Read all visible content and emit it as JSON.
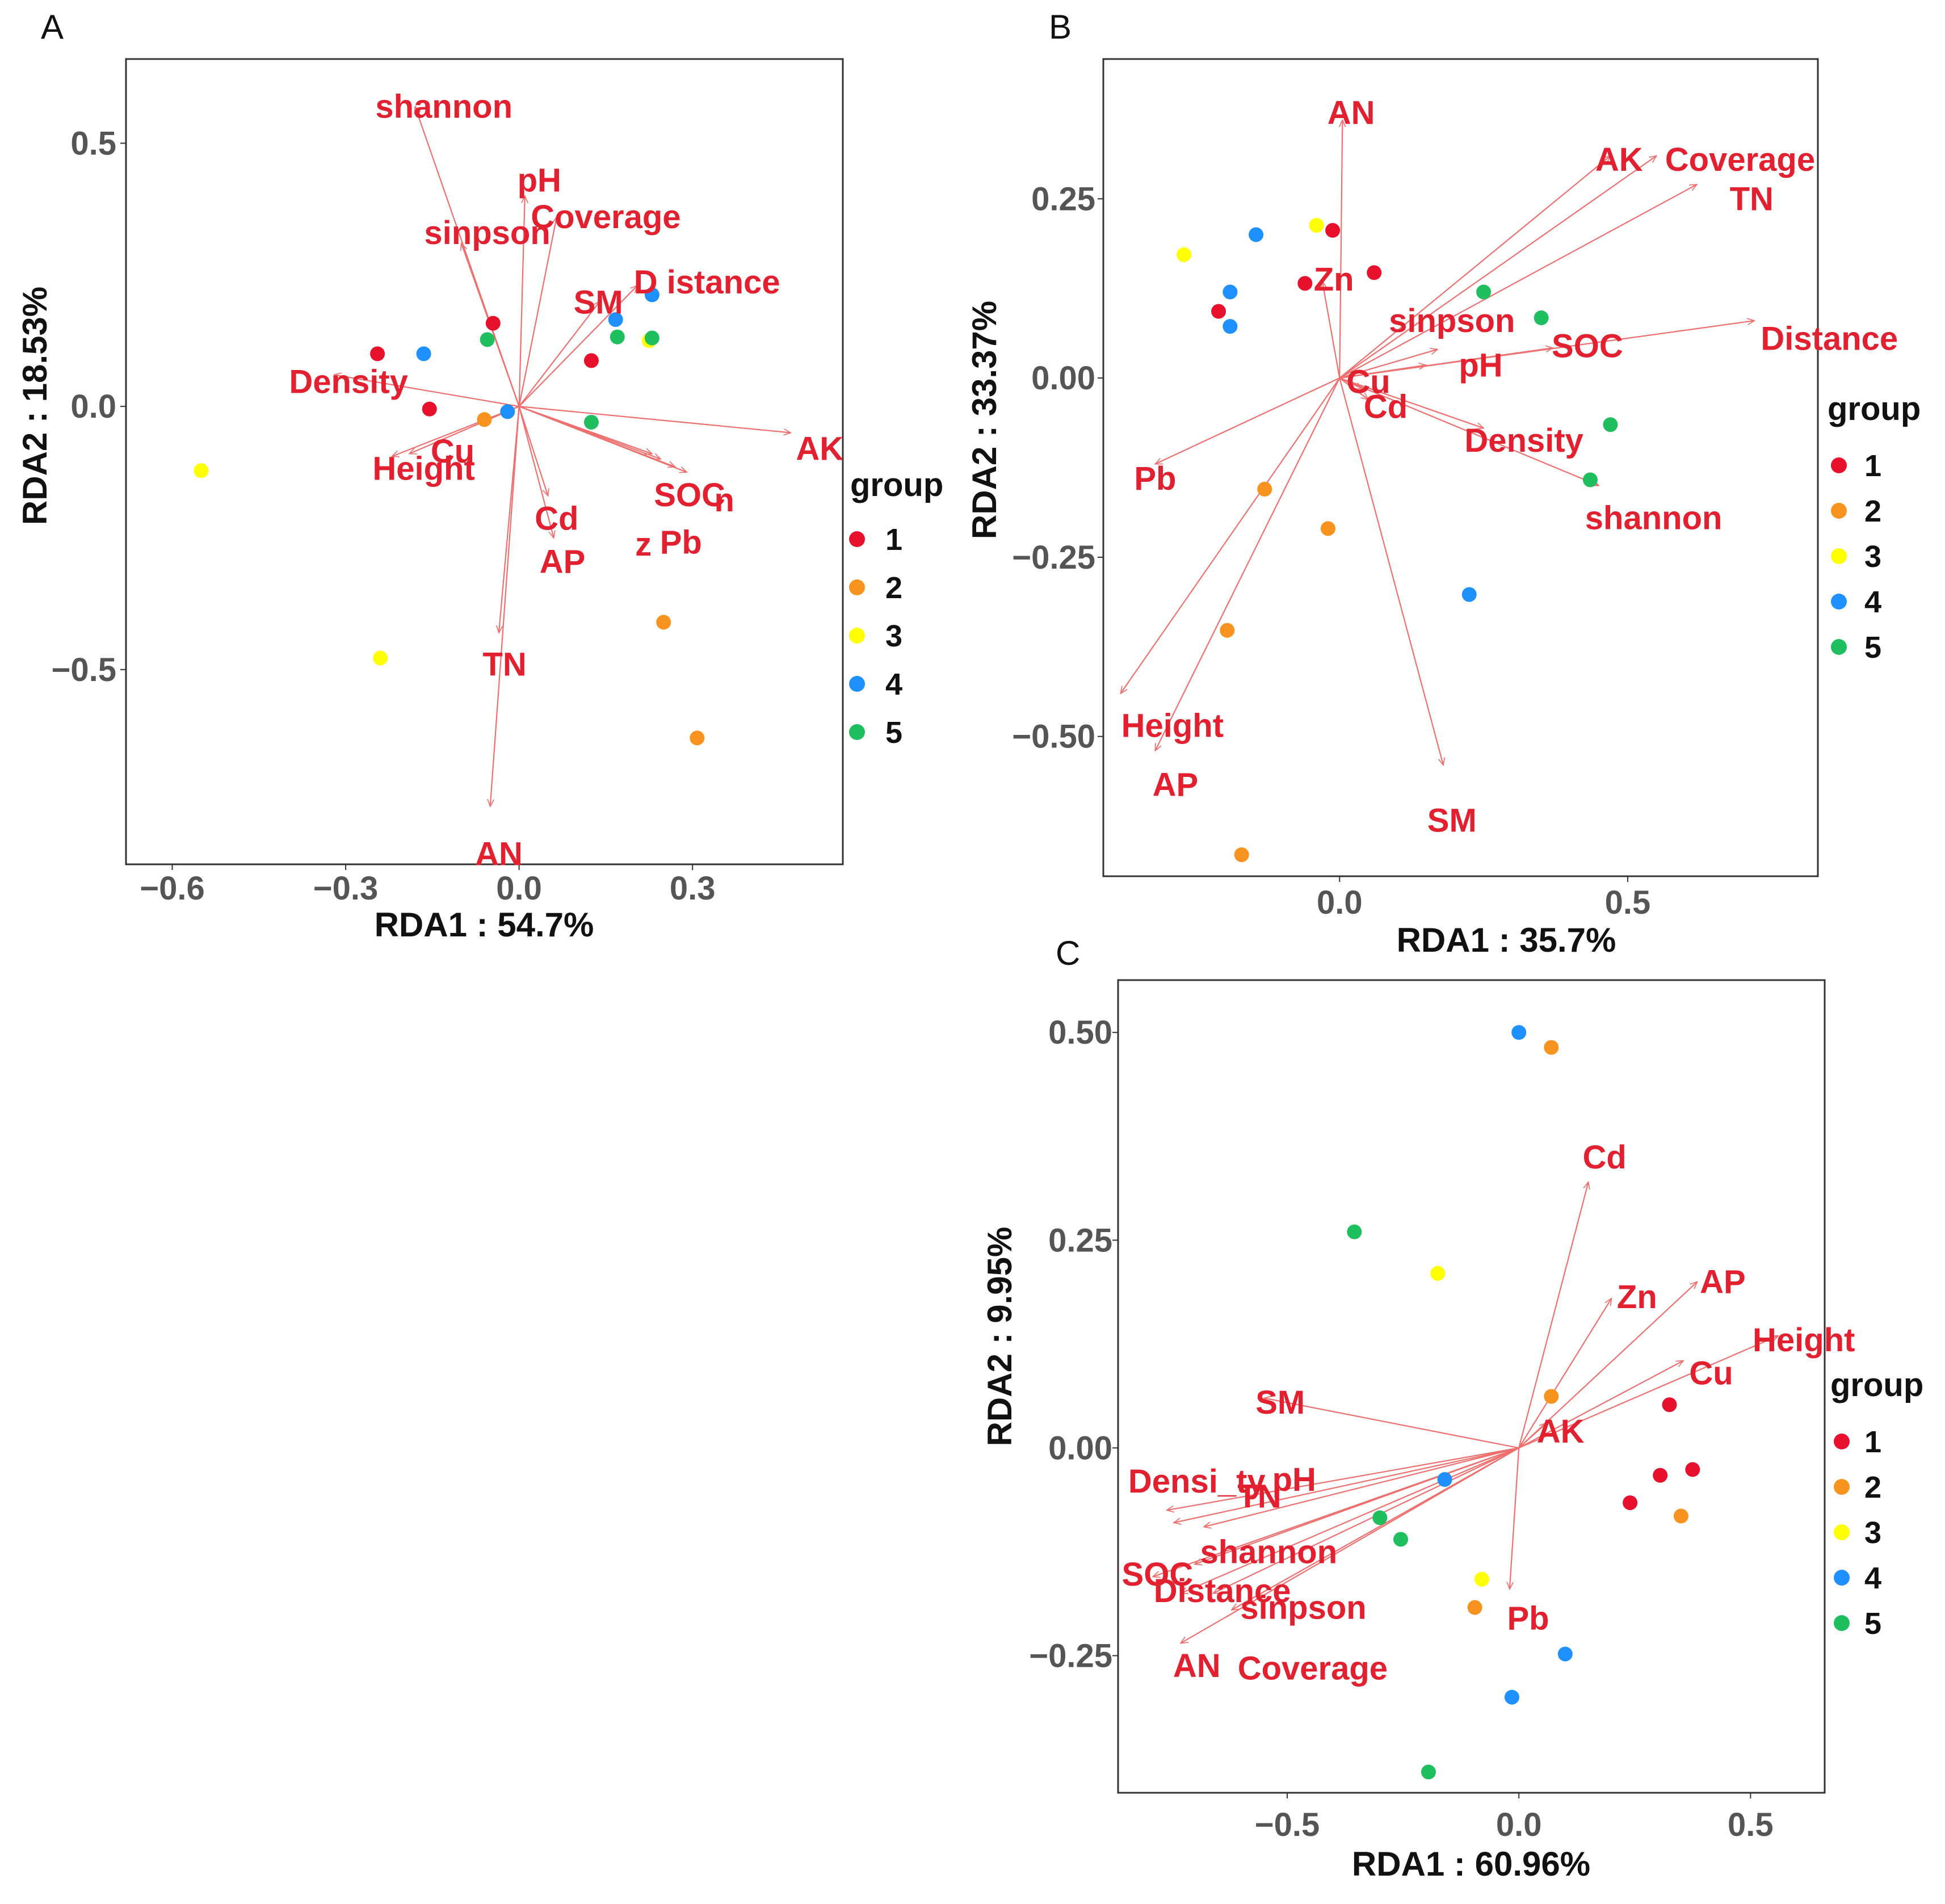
{
  "colors": {
    "1": "#e8112d",
    "2": "#f7931e",
    "3": "#ffff00",
    "4": "#1e90ff",
    "5": "#1fbf5f",
    "arrow": "#ef6f6f",
    "label": "#e3202f"
  },
  "chart_data": [
    {
      "type": "scatter",
      "panel": "A",
      "xlabel": "RDA1 : 54.7%",
      "ylabel": "RDA2 : 18.53%",
      "xlim": [
        -0.68,
        0.56
      ],
      "ylim": [
        -0.87,
        0.66
      ],
      "xticks": [
        {
          "v": -0.6,
          "t": "−0.6"
        },
        {
          "v": -0.3,
          "t": "−0.3"
        },
        {
          "v": 0,
          "t": "0.0"
        },
        {
          "v": 0.3,
          "t": "0.3"
        }
      ],
      "yticks": [
        {
          "v": -0.5,
          "t": "−0.5"
        },
        {
          "v": 0,
          "t": "0.0"
        },
        {
          "v": 0.5,
          "t": "0.5"
        }
      ],
      "legend_title": "group",
      "legend_items": [
        "1",
        "2",
        "3",
        "4",
        "5"
      ],
      "points": [
        {
          "x": -0.245,
          "y": 0.1,
          "g": "1"
        },
        {
          "x": -0.155,
          "y": -0.005,
          "g": "1"
        },
        {
          "x": -0.045,
          "y": 0.158,
          "g": "1"
        },
        {
          "x": 0.125,
          "y": 0.087,
          "g": "1"
        },
        {
          "x": -0.06,
          "y": -0.025,
          "g": "2"
        },
        {
          "x": 0.25,
          "y": -0.41,
          "g": "2"
        },
        {
          "x": 0.308,
          "y": -0.63,
          "g": "2"
        },
        {
          "x": -0.55,
          "y": -0.122,
          "g": "3"
        },
        {
          "x": -0.24,
          "y": -0.478,
          "g": "3"
        },
        {
          "x": 0.225,
          "y": 0.125,
          "g": "3"
        },
        {
          "x": -0.165,
          "y": 0.1,
          "g": "4"
        },
        {
          "x": -0.02,
          "y": -0.01,
          "g": "4"
        },
        {
          "x": 0.167,
          "y": 0.165,
          "g": "4"
        },
        {
          "x": 0.23,
          "y": 0.212,
          "g": "4"
        },
        {
          "x": -0.055,
          "y": 0.127,
          "g": "5"
        },
        {
          "x": 0.125,
          "y": -0.03,
          "g": "5"
        },
        {
          "x": 0.17,
          "y": 0.132,
          "g": "5"
        },
        {
          "x": 0.23,
          "y": 0.13,
          "g": "5"
        }
      ],
      "vectors": [
        {
          "name": "shannon",
          "x": -0.18,
          "y": 0.57,
          "lx": -0.13,
          "ly": 0.57
        },
        {
          "name": "pH",
          "x": 0.01,
          "y": 0.4,
          "lx": 0.035,
          "ly": 0.43
        },
        {
          "name": "Coverage",
          "x": 0.065,
          "y": 0.36,
          "lx": 0.15,
          "ly": 0.36
        },
        {
          "name": "sinpson",
          "x": -0.1,
          "y": 0.31,
          "lx": -0.055,
          "ly": 0.33
        },
        {
          "name": "SM",
          "x": 0.14,
          "y": 0.2,
          "lx": 0.137,
          "ly": 0.198
        },
        {
          "name": "D istance",
          "x": 0.205,
          "y": 0.23,
          "lx": 0.325,
          "ly": 0.236
        },
        {
          "name": "Density",
          "x": -0.32,
          "y": 0.06,
          "lx": -0.295,
          "ly": 0.047
        },
        {
          "name": "AK",
          "x": 0.47,
          "y": -0.05,
          "lx": 0.52,
          "ly": -0.08
        },
        {
          "name": "Cu",
          "x": -0.19,
          "y": -0.09,
          "lx": -0.115,
          "ly": -0.085
        },
        {
          "name": "Height",
          "x": -0.22,
          "y": -0.095,
          "lx": -0.165,
          "ly": -0.118
        },
        {
          "name": "SOC",
          "x": 0.29,
          "y": -0.125,
          "lx": 0.295,
          "ly": -0.168
        },
        {
          "name": "n",
          "x": 0.27,
          "y": -0.115,
          "lx": 0.355,
          "ly": -0.178
        },
        {
          "name": "z",
          "x": 0.23,
          "y": -0.09,
          "lx": 0.215,
          "ly": -0.262
        },
        {
          "name": "Pb",
          "x": 0.245,
          "y": -0.1,
          "lx": 0.28,
          "ly": -0.258
        },
        {
          "name": "Cd",
          "x": 0.05,
          "y": -0.17,
          "lx": 0.065,
          "ly": -0.213
        },
        {
          "name": "AP",
          "x": 0.06,
          "y": -0.25,
          "lx": 0.075,
          "ly": -0.295
        },
        {
          "name": "TN",
          "x": -0.035,
          "y": -0.43,
          "lx": -0.025,
          "ly": -0.49
        },
        {
          "name": "AN",
          "x": -0.05,
          "y": -0.76,
          "lx": -0.035,
          "ly": -0.85
        }
      ]
    },
    {
      "type": "scatter",
      "panel": "B",
      "xlabel": "RDA1 : 35.7%",
      "ylabel": "RDA2 : 33.37%",
      "xlim": [
        -0.41,
        0.83
      ],
      "ylim": [
        -0.695,
        0.445
      ],
      "xticks": [
        {
          "v": 0,
          "t": "0.0"
        },
        {
          "v": 0.5,
          "t": "0.5"
        }
      ],
      "yticks": [
        {
          "v": -0.5,
          "t": "−0.50"
        },
        {
          "v": -0.25,
          "t": "−0.25"
        },
        {
          "v": 0,
          "t": "0.00"
        },
        {
          "v": 0.25,
          "t": "0.25"
        }
      ],
      "legend_title": "group",
      "legend_items": [
        "1",
        "2",
        "3",
        "4",
        "5"
      ],
      "points": [
        {
          "x": -0.21,
          "y": 0.093,
          "g": "1"
        },
        {
          "x": -0.06,
          "y": 0.132,
          "g": "1"
        },
        {
          "x": -0.012,
          "y": 0.206,
          "g": "1"
        },
        {
          "x": 0.06,
          "y": 0.147,
          "g": "1"
        },
        {
          "x": -0.13,
          "y": -0.155,
          "g": "2"
        },
        {
          "x": -0.02,
          "y": -0.21,
          "g": "2"
        },
        {
          "x": -0.195,
          "y": -0.352,
          "g": "2"
        },
        {
          "x": -0.17,
          "y": -0.665,
          "g": "2"
        },
        {
          "x": -0.27,
          "y": 0.172,
          "g": "3"
        },
        {
          "x": -0.04,
          "y": 0.213,
          "g": "3"
        },
        {
          "x": -0.19,
          "y": 0.12,
          "g": "4"
        },
        {
          "x": -0.145,
          "y": 0.2,
          "g": "4"
        },
        {
          "x": -0.19,
          "y": 0.072,
          "g": "4"
        },
        {
          "x": 0.225,
          "y": -0.302,
          "g": "4"
        },
        {
          "x": 0.25,
          "y": 0.12,
          "g": "5"
        },
        {
          "x": 0.35,
          "y": 0.084,
          "g": "5"
        },
        {
          "x": 0.47,
          "y": -0.065,
          "g": "5"
        },
        {
          "x": 0.435,
          "y": -0.142,
          "g": "5"
        }
      ],
      "vectors": [
        {
          "name": "AN",
          "x": 0.005,
          "y": 0.36,
          "lx": 0.02,
          "ly": 0.37
        },
        {
          "name": "AK",
          "x": 0.47,
          "y": 0.31,
          "lx": 0.485,
          "ly": 0.305
        },
        {
          "name": "Coverage",
          "x": 0.55,
          "y": 0.31,
          "lx": 0.695,
          "ly": 0.305
        },
        {
          "name": "TN",
          "x": 0.62,
          "y": 0.27,
          "lx": 0.715,
          "ly": 0.25
        },
        {
          "name": "Zn",
          "x": -0.03,
          "y": 0.135,
          "lx": -0.01,
          "ly": 0.138
        },
        {
          "name": "sinpson",
          "x": 0.17,
          "y": 0.04,
          "lx": 0.195,
          "ly": 0.08
        },
        {
          "name": "Distance",
          "x": 0.72,
          "y": 0.08,
          "lx": 0.85,
          "ly": 0.055
        },
        {
          "name": "SOC",
          "x": 0.37,
          "y": 0.042,
          "lx": 0.43,
          "ly": 0.045
        },
        {
          "name": "pH",
          "x": 0.15,
          "y": 0.018,
          "lx": 0.245,
          "ly": 0.018
        },
        {
          "name": "Cu",
          "x": 0.04,
          "y": -0.015,
          "lx": 0.05,
          "ly": -0.005
        },
        {
          "name": "Cd",
          "x": 0.05,
          "y": -0.03,
          "lx": 0.08,
          "ly": -0.04
        },
        {
          "name": "Density",
          "x": 0.25,
          "y": -0.07,
          "lx": 0.32,
          "ly": -0.087
        },
        {
          "name": "shannon",
          "x": 0.45,
          "y": -0.15,
          "lx": 0.545,
          "ly": -0.195
        },
        {
          "name": "Pb",
          "x": -0.32,
          "y": -0.12,
          "lx": -0.32,
          "ly": -0.14
        },
        {
          "name": "Height",
          "x": -0.38,
          "y": -0.44,
          "lx": -0.29,
          "ly": -0.485
        },
        {
          "name": "AP",
          "x": -0.32,
          "y": -0.52,
          "lx": -0.285,
          "ly": -0.567
        },
        {
          "name": "SM",
          "x": 0.18,
          "y": -0.54,
          "lx": 0.195,
          "ly": -0.617
        }
      ]
    },
    {
      "type": "scatter",
      "panel": "C",
      "xlabel": "RDA1 : 60.96%",
      "ylabel": "RDA2 : 9.95%",
      "xlim": [
        -0.865,
        0.66
      ],
      "ylim": [
        -0.415,
        0.563
      ],
      "xticks": [
        {
          "v": -0.5,
          "t": "−0.5"
        },
        {
          "v": 0,
          "t": "0.0"
        },
        {
          "v": 0.5,
          "t": "0.5"
        }
      ],
      "yticks": [
        {
          "v": -0.25,
          "t": "−0.25"
        },
        {
          "v": 0,
          "t": "0.00"
        },
        {
          "v": 0.25,
          "t": "0.25"
        },
        {
          "v": 0.5,
          "t": "0.50"
        }
      ],
      "legend_title": "group",
      "legend_items": [
        "1",
        "2",
        "3",
        "4",
        "5"
      ],
      "points": [
        {
          "x": 0.325,
          "y": 0.052,
          "g": "1"
        },
        {
          "x": 0.305,
          "y": -0.033,
          "g": "1"
        },
        {
          "x": 0.375,
          "y": -0.026,
          "g": "1"
        },
        {
          "x": 0.24,
          "y": -0.066,
          "g": "1"
        },
        {
          "x": 0.07,
          "y": 0.482,
          "g": "2"
        },
        {
          "x": 0.07,
          "y": 0.062,
          "g": "2"
        },
        {
          "x": 0.35,
          "y": -0.082,
          "g": "2"
        },
        {
          "x": -0.095,
          "y": -0.192,
          "g": "2"
        },
        {
          "x": -0.175,
          "y": 0.21,
          "g": "3"
        },
        {
          "x": -0.08,
          "y": -0.158,
          "g": "3"
        },
        {
          "x": 0,
          "y": 0.5,
          "g": "4"
        },
        {
          "x": -0.16,
          "y": -0.038,
          "g": "4"
        },
        {
          "x": 0.1,
          "y": -0.248,
          "g": "4"
        },
        {
          "x": -0.015,
          "y": -0.3,
          "g": "4"
        },
        {
          "x": -0.355,
          "y": 0.26,
          "g": "5"
        },
        {
          "x": -0.3,
          "y": -0.084,
          "g": "5"
        },
        {
          "x": -0.255,
          "y": -0.11,
          "g": "5"
        },
        {
          "x": -0.195,
          "y": -0.39,
          "g": "5"
        }
      ],
      "vectors": [
        {
          "name": "Cd",
          "x": 0.15,
          "y": 0.32,
          "lx": 0.185,
          "ly": 0.35
        },
        {
          "name": "Zn",
          "x": 0.2,
          "y": 0.18,
          "lx": 0.255,
          "ly": 0.182
        },
        {
          "name": "AP",
          "x": 0.385,
          "y": 0.2,
          "lx": 0.44,
          "ly": 0.2
        },
        {
          "name": "Height",
          "x": 0.56,
          "y": 0.135,
          "lx": 0.615,
          "ly": 0.13
        },
        {
          "name": "Cu",
          "x": 0.355,
          "y": 0.105,
          "lx": 0.415,
          "ly": 0.09
        },
        {
          "name": "AK",
          "x": 0.06,
          "y": 0.03,
          "lx": 0.09,
          "ly": 0.02
        },
        {
          "name": "SM",
          "x": -0.55,
          "y": 0.06,
          "lx": -0.515,
          "ly": 0.055
        },
        {
          "name": "Densi_ty",
          "x": -0.76,
          "y": -0.075,
          "lx": -0.695,
          "ly": -0.04
        },
        {
          "name": "TN",
          "x": -0.745,
          "y": -0.09,
          "lx": -0.56,
          "ly": -0.058
        },
        {
          "name": "pH",
          "x": -0.68,
          "y": -0.095,
          "lx": -0.485,
          "ly": -0.038
        },
        {
          "name": "shannon",
          "x": -0.7,
          "y": -0.14,
          "lx": -0.54,
          "ly": -0.125
        },
        {
          "name": "SOC",
          "x": -0.79,
          "y": -0.155,
          "lx": -0.78,
          "ly": -0.152
        },
        {
          "name": "Distance",
          "x": -0.73,
          "y": -0.175,
          "lx": -0.64,
          "ly": -0.172
        },
        {
          "name": "sinpson",
          "x": -0.66,
          "y": -0.175,
          "lx": -0.465,
          "ly": -0.192
        },
        {
          "name": "AN",
          "x": -0.73,
          "y": -0.235,
          "lx": -0.695,
          "ly": -0.262
        },
        {
          "name": "Coverage",
          "x": -0.62,
          "y": -0.195,
          "lx": -0.445,
          "ly": -0.265
        },
        {
          "name": "Pb",
          "x": -0.02,
          "y": -0.17,
          "lx": 0.02,
          "ly": -0.205
        }
      ]
    }
  ]
}
